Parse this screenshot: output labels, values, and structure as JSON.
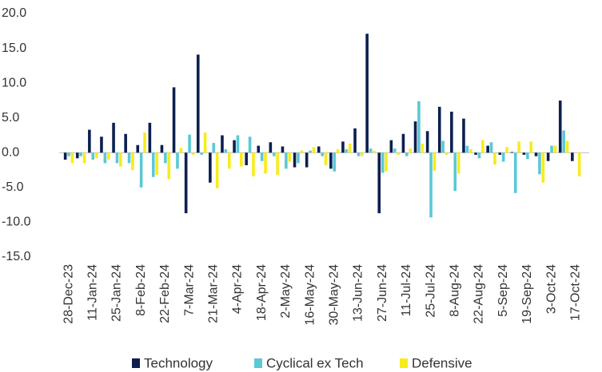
{
  "chart_data": {
    "type": "bar",
    "categories": [
      "28-Dec-23",
      null,
      "11-Jan-24",
      null,
      "25-Jan-24",
      null,
      "8-Feb-24",
      null,
      "22-Feb-24",
      null,
      "7-Mar-24",
      null,
      "21-Mar-24",
      null,
      "4-Apr-24",
      null,
      "18-Apr-24",
      null,
      "2-May-24",
      null,
      "16-May-24",
      null,
      "30-May-24",
      null,
      "13-Jun-24",
      null,
      "27-Jun-24",
      null,
      "11-Jul-24",
      null,
      "25-Jul-24",
      null,
      "8-Aug-24",
      null,
      "22-Aug-24",
      null,
      "5-Sep-24",
      null,
      "19-Sep-24",
      null,
      "3-Oct-24",
      null,
      "17-Oct-24"
    ],
    "series": [
      {
        "name": "Technology",
        "color": "#0c1f4f",
        "values": [
          -1,
          -0.8,
          3.3,
          2.3,
          4.3,
          2.7,
          1.1,
          4.3,
          1.1,
          9.4,
          -8.7,
          14.1,
          -4.3,
          2.5,
          1.8,
          -1.8,
          1,
          1.5,
          0.9,
          -2.1,
          -2.1,
          0.9,
          -2.3,
          1.6,
          3.5,
          17.1,
          -8.7,
          1.8,
          2.7,
          4.5,
          3.1,
          6.6,
          5.9,
          4.9,
          -0.3,
          1,
          -0.3,
          0.1,
          -0.3,
          -0.5,
          -1.2,
          7.5,
          -1.2
        ]
      },
      {
        "name": "Cyclical ex Tech",
        "color": "#5bc8d6",
        "values": [
          -0.5,
          -0.5,
          -1,
          -1.5,
          -1.5,
          -1.5,
          -5,
          -3.5,
          -1.5,
          -2.3,
          2.6,
          -0.3,
          1.4,
          0.5,
          2.5,
          2.3,
          -1.2,
          -0.5,
          -2.3,
          -1.5,
          0.3,
          -0.5,
          -2.7,
          0.5,
          -0.5,
          0.6,
          -2.9,
          0.6,
          -0.5,
          7.4,
          -9.3,
          1.7,
          -5.5,
          1,
          -0.8,
          1.5,
          -1.3,
          -5.8,
          -0.9,
          -3.1,
          1,
          3.2,
          0
        ]
      },
      {
        "name": "Defensive",
        "color": "#f7ec1a",
        "values": [
          -1.5,
          -1.5,
          -0.8,
          -1,
          -2,
          -2.5,
          2.9,
          -3.2,
          -3.8,
          0.7,
          -0.3,
          2.9,
          -5.1,
          -2.3,
          -2,
          -3.4,
          -3,
          -3.2,
          -1.3,
          0.3,
          0.8,
          -1.8,
          0.5,
          1.3,
          -0.5,
          0.3,
          -2.7,
          -0.3,
          0.6,
          1.3,
          -2.6,
          -0.3,
          -3,
          0.5,
          1.8,
          -1.7,
          0.8,
          1.6,
          1.6,
          -4.3,
          1,
          1.7,
          -3.4
        ]
      }
    ],
    "ylim": [
      -15,
      20
    ],
    "yticks": [
      {
        "value": -15,
        "label": "-15.0"
      },
      {
        "value": -10,
        "label": "-10.0"
      },
      {
        "value": -5,
        "label": "-5.0"
      },
      {
        "value": 0,
        "label": "0.0"
      },
      {
        "value": 5,
        "label": "5.0"
      },
      {
        "value": 10,
        "label": "10.0"
      },
      {
        "value": 15,
        "label": "15.0"
      },
      {
        "value": 20,
        "label": "20.0"
      }
    ],
    "legend": "bottom"
  }
}
